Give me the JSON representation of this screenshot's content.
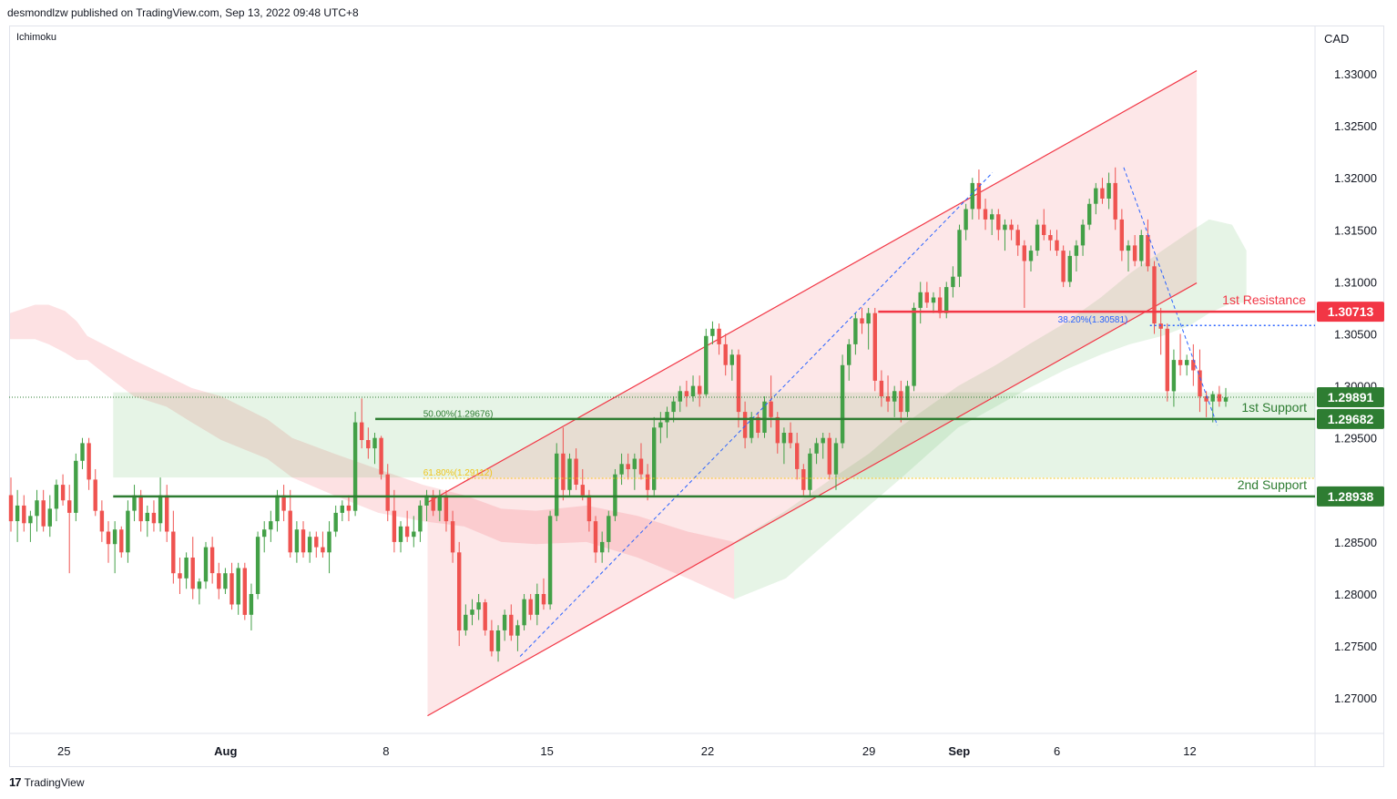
{
  "header": {
    "published": "desmondlzw published on TradingView.com, Sep 13, 2022 09:48 UTC+8"
  },
  "indicator": "Ichimoku",
  "currency": "CAD",
  "footer": {
    "logo": "17",
    "brand": "TradingView"
  },
  "colors": {
    "up": "#43a047",
    "down": "#ef5350",
    "resistance": "#f23645",
    "support": "#2e7d32",
    "channel_fill": "rgba(242,54,69,0.12)",
    "cloud_bear": "rgba(242,54,69,0.15)",
    "cloud_bull": "rgba(76,175,80,0.14)",
    "fib_blue": "#2962ff",
    "fib_yellow": "#f0c419"
  },
  "chart_data": {
    "type": "candlestick",
    "symbol_quote_currency": "CAD",
    "y_axis": {
      "ticks": [
        "1.33000",
        "1.32500",
        "1.32000",
        "1.31500",
        "1.31000",
        "1.30500",
        "1.30000",
        "1.29500",
        "1.29000",
        "1.28500",
        "1.28000",
        "1.27500",
        "1.27000"
      ],
      "range": [
        1.2665,
        1.3325
      ]
    },
    "x_axis": {
      "ticks": [
        "25",
        "Aug",
        "8",
        "15",
        "22",
        "29",
        "Sep",
        "6",
        "12"
      ],
      "bold_ticks": [
        "Aug",
        "Sep"
      ]
    },
    "levels": [
      {
        "name": "1st Resistance",
        "value": "1.30713",
        "price": 1.30713,
        "color": "resistance"
      },
      {
        "name": "1st Support",
        "value": "1.29682",
        "price": 1.29682,
        "color": "support"
      },
      {
        "name": "2nd Support",
        "value": "1.28938",
        "price": 1.28938,
        "color": "support"
      }
    ],
    "current_price": {
      "value": "1.29891",
      "price": 1.29891
    },
    "fibonacci": [
      {
        "text": "38.20%(1.30581)",
        "price": 1.30581
      },
      {
        "text": "50.00%(1.29676)",
        "price": 1.29676
      },
      {
        "text": "61.80%(1.29112)",
        "price": 1.29112
      }
    ],
    "support_zone": [
      1.29938,
      1.2912
    ],
    "channel": {
      "upper": [
        [
          0.3204,
          1.2888
        ],
        [
          0.9094,
          1.3303
        ]
      ],
      "lower": [
        [
          0.3204,
          1.2683
        ],
        [
          0.9094,
          1.3099
        ]
      ]
    },
    "swing_lines": [
      {
        "points": [
          [
            0.3913,
            1.274
          ],
          [
            0.753,
            1.3205
          ]
        ]
      },
      {
        "points": [
          [
            0.8535,
            1.321
          ],
          [
            0.9252,
            1.2962
          ]
        ]
      }
    ],
    "candles": [
      [
        1.2895,
        1.2912,
        1.286,
        1.287
      ],
      [
        1.287,
        1.29,
        1.285,
        1.2885
      ],
      [
        1.2885,
        1.2895,
        1.286,
        1.2868
      ],
      [
        1.2868,
        1.288,
        1.285,
        1.2875
      ],
      [
        1.2875,
        1.29,
        1.286,
        1.289
      ],
      [
        1.289,
        1.29,
        1.286,
        1.2865
      ],
      [
        1.2865,
        1.2895,
        1.2855,
        1.2882
      ],
      [
        1.2882,
        1.291,
        1.287,
        1.2905
      ],
      [
        1.2905,
        1.2915,
        1.2885,
        1.289
      ],
      [
        1.289,
        1.2905,
        1.282,
        1.2878
      ],
      [
        1.2878,
        1.2935,
        1.287,
        1.2928
      ],
      [
        1.2928,
        1.295,
        1.292,
        1.2945
      ],
      [
        1.2945,
        1.295,
        1.29,
        1.291
      ],
      [
        1.291,
        1.292,
        1.2875,
        1.288
      ],
      [
        1.288,
        1.289,
        1.285,
        1.286
      ],
      [
        1.286,
        1.287,
        1.283,
        1.2848
      ],
      [
        1.2848,
        1.287,
        1.282,
        1.2862
      ],
      [
        1.2862,
        1.2865,
        1.2835,
        1.284
      ],
      [
        1.284,
        1.289,
        1.283,
        1.288
      ],
      [
        1.288,
        1.2905,
        1.287,
        1.2895
      ],
      [
        1.2895,
        1.29,
        1.286,
        1.287
      ],
      [
        1.287,
        1.2885,
        1.2855,
        1.2878
      ],
      [
        1.2878,
        1.289,
        1.286,
        1.2868
      ],
      [
        1.2868,
        1.2912,
        1.286,
        1.2895
      ],
      [
        1.2895,
        1.2905,
        1.285,
        1.286
      ],
      [
        1.286,
        1.288,
        1.281,
        1.282
      ],
      [
        1.282,
        1.2835,
        1.28,
        1.2815
      ],
      [
        1.2815,
        1.284,
        1.2805,
        1.2835
      ],
      [
        1.2835,
        1.2855,
        1.2795,
        1.2805
      ],
      [
        1.2805,
        1.2815,
        1.279,
        1.2812
      ],
      [
        1.2812,
        1.285,
        1.2805,
        1.2845
      ],
      [
        1.2845,
        1.2855,
        1.281,
        1.282
      ],
      [
        1.282,
        1.283,
        1.2795,
        1.2805
      ],
      [
        1.2805,
        1.2825,
        1.28,
        1.282
      ],
      [
        1.282,
        1.283,
        1.2785,
        1.279
      ],
      [
        1.279,
        1.283,
        1.278,
        1.2825
      ],
      [
        1.2825,
        1.283,
        1.2775,
        1.278
      ],
      [
        1.278,
        1.281,
        1.2765,
        1.28
      ],
      [
        1.28,
        1.286,
        1.2795,
        1.2855
      ],
      [
        1.2855,
        1.287,
        1.284,
        1.2862
      ],
      [
        1.2862,
        1.288,
        1.285,
        1.287
      ],
      [
        1.287,
        1.29,
        1.286,
        1.2895
      ],
      [
        1.2895,
        1.2905,
        1.287,
        1.288
      ],
      [
        1.288,
        1.29,
        1.2835,
        1.284
      ],
      [
        1.284,
        1.287,
        1.283,
        1.2862
      ],
      [
        1.2862,
        1.287,
        1.2835,
        1.284
      ],
      [
        1.284,
        1.286,
        1.283,
        1.2855
      ],
      [
        1.2855,
        1.286,
        1.2835,
        1.2845
      ],
      [
        1.2845,
        1.286,
        1.2835,
        1.284
      ],
      [
        1.284,
        1.287,
        1.282,
        1.286
      ],
      [
        1.286,
        1.2885,
        1.2855,
        1.2878
      ],
      [
        1.2878,
        1.289,
        1.287,
        1.2885
      ],
      [
        1.2885,
        1.2895,
        1.287,
        1.288
      ],
      [
        1.288,
        1.2975,
        1.2875,
        1.2965
      ],
      [
        1.2965,
        1.2988,
        1.294,
        1.2948
      ],
      [
        1.2948,
        1.296,
        1.293,
        1.294
      ],
      [
        1.294,
        1.2955,
        1.2925,
        1.295
      ],
      [
        1.295,
        1.2952,
        1.291,
        1.2915
      ],
      [
        1.2915,
        1.2925,
        1.287,
        1.288
      ],
      [
        1.288,
        1.29,
        1.284,
        1.285
      ],
      [
        1.285,
        1.287,
        1.284,
        1.2865
      ],
      [
        1.2865,
        1.288,
        1.285,
        1.2855
      ],
      [
        1.2855,
        1.2875,
        1.2845,
        1.286
      ],
      [
        1.286,
        1.289,
        1.285,
        1.2885
      ],
      [
        1.2885,
        1.29,
        1.287,
        1.2895
      ],
      [
        1.2895,
        1.29,
        1.2875,
        1.288
      ],
      [
        1.288,
        1.29,
        1.287,
        1.2895
      ],
      [
        1.2895,
        1.29,
        1.286,
        1.287
      ],
      [
        1.287,
        1.288,
        1.283,
        1.284
      ],
      [
        1.284,
        1.285,
        1.275,
        1.2765
      ],
      [
        1.2765,
        1.279,
        1.276,
        1.278
      ],
      [
        1.278,
        1.2795,
        1.277,
        1.2785
      ],
      [
        1.2785,
        1.28,
        1.2775,
        1.2792
      ],
      [
        1.2792,
        1.2795,
        1.276,
        1.2765
      ],
      [
        1.2765,
        1.2775,
        1.274,
        1.2745
      ],
      [
        1.2745,
        1.277,
        1.2735,
        1.2765
      ],
      [
        1.2765,
        1.2785,
        1.2755,
        1.278
      ],
      [
        1.278,
        1.279,
        1.2755,
        1.276
      ],
      [
        1.276,
        1.2775,
        1.2745,
        1.277
      ],
      [
        1.277,
        1.28,
        1.2765,
        1.2795
      ],
      [
        1.2795,
        1.28,
        1.2775,
        1.278
      ],
      [
        1.278,
        1.281,
        1.277,
        1.28
      ],
      [
        1.28,
        1.2815,
        1.2785,
        1.279
      ],
      [
        1.279,
        1.288,
        1.2785,
        1.2875
      ],
      [
        1.2875,
        1.2945,
        1.287,
        1.2935
      ],
      [
        1.2935,
        1.296,
        1.289,
        1.29
      ],
      [
        1.29,
        1.2935,
        1.2895,
        1.293
      ],
      [
        1.293,
        1.294,
        1.29,
        1.2905
      ],
      [
        1.2905,
        1.292,
        1.289,
        1.2895
      ],
      [
        1.2895,
        1.29,
        1.286,
        1.287
      ],
      [
        1.287,
        1.2875,
        1.283,
        1.284
      ],
      [
        1.284,
        1.286,
        1.283,
        1.285
      ],
      [
        1.285,
        1.288,
        1.284,
        1.2875
      ],
      [
        1.2875,
        1.292,
        1.287,
        1.2915
      ],
      [
        1.2915,
        1.2935,
        1.2905,
        1.2925
      ],
      [
        1.2925,
        1.2935,
        1.291,
        1.292
      ],
      [
        1.292,
        1.2935,
        1.29,
        1.293
      ],
      [
        1.293,
        1.2945,
        1.291,
        1.2915
      ],
      [
        1.2915,
        1.2925,
        1.289,
        1.29
      ],
      [
        1.29,
        1.297,
        1.2895,
        1.296
      ],
      [
        1.296,
        1.2975,
        1.2945,
        1.2965
      ],
      [
        1.2965,
        1.298,
        1.295,
        1.2975
      ],
      [
        1.2975,
        1.299,
        1.2965,
        1.2985
      ],
      [
        1.2985,
        1.3,
        1.2975,
        1.2995
      ],
      [
        1.2995,
        1.3005,
        1.298,
        1.299
      ],
      [
        1.299,
        1.301,
        1.2985,
        1.3
      ],
      [
        1.3,
        1.301,
        1.298,
        1.2992
      ],
      [
        1.2992,
        1.3055,
        1.299,
        1.3048
      ],
      [
        1.3048,
        1.3062,
        1.304,
        1.3055
      ],
      [
        1.3055,
        1.306,
        1.303,
        1.304
      ],
      [
        1.304,
        1.305,
        1.301,
        1.302
      ],
      [
        1.302,
        1.3035,
        1.3005,
        1.303
      ],
      [
        1.303,
        1.3035,
        1.296,
        1.2975
      ],
      [
        1.2975,
        1.2985,
        1.294,
        1.295
      ],
      [
        1.295,
        1.2975,
        1.2945,
        1.297
      ],
      [
        1.297,
        1.2975,
        1.295,
        1.2955
      ],
      [
        1.2955,
        1.299,
        1.295,
        1.2985
      ],
      [
        1.2985,
        1.301,
        1.296,
        1.297
      ],
      [
        1.297,
        1.2975,
        1.2935,
        1.2945
      ],
      [
        1.2945,
        1.296,
        1.2925,
        1.2955
      ],
      [
        1.2955,
        1.2965,
        1.294,
        1.2945
      ],
      [
        1.2945,
        1.2955,
        1.291,
        1.292
      ],
      [
        1.292,
        1.2925,
        1.2895,
        1.29
      ],
      [
        1.29,
        1.294,
        1.2895,
        1.2935
      ],
      [
        1.2935,
        1.295,
        1.2925,
        1.2945
      ],
      [
        1.2945,
        1.2955,
        1.293,
        1.295
      ],
      [
        1.295,
        1.2955,
        1.291,
        1.2915
      ],
      [
        1.2915,
        1.295,
        1.29,
        1.2945
      ],
      [
        1.2945,
        1.303,
        1.294,
        1.302
      ],
      [
        1.302,
        1.3045,
        1.3005,
        1.304
      ],
      [
        1.304,
        1.307,
        1.303,
        1.3065
      ],
      [
        1.3065,
        1.3075,
        1.305,
        1.306
      ],
      [
        1.306,
        1.3075,
        1.3035,
        1.307
      ],
      [
        1.307,
        1.3075,
        1.2995,
        1.3005
      ],
      [
        1.3005,
        1.3015,
        1.298,
        1.299
      ],
      [
        1.299,
        1.301,
        1.2975,
        1.2985
      ],
      [
        1.2985,
        1.3,
        1.297,
        1.2995
      ],
      [
        1.2995,
        1.3005,
        1.2965,
        1.2975
      ],
      [
        1.2975,
        1.3005,
        1.297,
        1.3
      ],
      [
        1.3,
        1.308,
        1.2995,
        1.3075
      ],
      [
        1.3075,
        1.31,
        1.306,
        1.309
      ],
      [
        1.309,
        1.31,
        1.3075,
        1.308
      ],
      [
        1.308,
        1.309,
        1.307,
        1.3085
      ],
      [
        1.3085,
        1.3095,
        1.3065,
        1.307
      ],
      [
        1.307,
        1.31,
        1.3065,
        1.3095
      ],
      [
        1.3095,
        1.3115,
        1.3085,
        1.3105
      ],
      [
        1.3105,
        1.3155,
        1.3095,
        1.315
      ],
      [
        1.315,
        1.3175,
        1.314,
        1.317
      ],
      [
        1.317,
        1.32,
        1.316,
        1.3195
      ],
      [
        1.3195,
        1.3208,
        1.316,
        1.317
      ],
      [
        1.317,
        1.318,
        1.315,
        1.316
      ],
      [
        1.316,
        1.317,
        1.3145,
        1.3165
      ],
      [
        1.3165,
        1.317,
        1.314,
        1.315
      ],
      [
        1.315,
        1.316,
        1.313,
        1.3155
      ],
      [
        1.3155,
        1.316,
        1.314,
        1.315
      ],
      [
        1.315,
        1.3155,
        1.3125,
        1.3135
      ],
      [
        1.3135,
        1.314,
        1.3075,
        1.312
      ],
      [
        1.312,
        1.3135,
        1.311,
        1.313
      ],
      [
        1.313,
        1.316,
        1.3125,
        1.3155
      ],
      [
        1.3155,
        1.317,
        1.314,
        1.3145
      ],
      [
        1.3145,
        1.315,
        1.313,
        1.314
      ],
      [
        1.314,
        1.315,
        1.3125,
        1.313
      ],
      [
        1.313,
        1.3135,
        1.3095,
        1.31
      ],
      [
        1.31,
        1.313,
        1.3095,
        1.3125
      ],
      [
        1.3125,
        1.314,
        1.311,
        1.3135
      ],
      [
        1.3135,
        1.316,
        1.3125,
        1.3155
      ],
      [
        1.3155,
        1.318,
        1.315,
        1.3175
      ],
      [
        1.3175,
        1.3195,
        1.3165,
        1.319
      ],
      [
        1.319,
        1.32,
        1.3175,
        1.318
      ],
      [
        1.318,
        1.3205,
        1.317,
        1.3195
      ],
      [
        1.3195,
        1.321,
        1.315,
        1.316
      ],
      [
        1.316,
        1.317,
        1.312,
        1.313
      ],
      [
        1.313,
        1.314,
        1.311,
        1.3135
      ],
      [
        1.3135,
        1.3145,
        1.3115,
        1.312
      ],
      [
        1.312,
        1.315,
        1.3115,
        1.3145
      ],
      [
        1.3145,
        1.316,
        1.311,
        1.3115
      ],
      [
        1.3115,
        1.312,
        1.305,
        1.306
      ],
      [
        1.306,
        1.3075,
        1.303,
        1.3055
      ],
      [
        1.3055,
        1.306,
        1.2985,
        1.2995
      ],
      [
        1.2995,
        1.3035,
        1.298,
        1.3025
      ],
      [
        1.3025,
        1.305,
        1.301,
        1.302
      ],
      [
        1.302,
        1.303,
        1.301,
        1.3025
      ],
      [
        1.3025,
        1.304,
        1.3,
        1.3015
      ],
      [
        1.3015,
        1.3035,
        1.2975,
        1.299
      ],
      [
        1.299,
        1.2995,
        1.297,
        1.2985
      ],
      [
        1.2985,
        1.2995,
        1.2965,
        1.2992
      ],
      [
        1.2992,
        1.3,
        1.298,
        1.2985
      ],
      [
        1.2985,
        1.2998,
        1.298,
        1.2989
      ]
    ],
    "cloud": [
      {
        "x": [
          0.0007,
          0.0199,
          0.0303,
          0.0428,
          0.0519,
          0.0598,
          0.0799,
          0.0955,
          0.1205,
          0.1398,
          0.1624,
          0.1976,
          0.2168,
          0.2486,
          0.2827,
          0.3169,
          0.3484,
          0.3769,
          0.4035,
          0.4422,
          0.4813,
          0.5196,
          0.5552
        ],
        "top": [
          1.307,
          1.3078,
          1.3078,
          1.3072,
          1.3062,
          1.3048,
          1.3035,
          1.3025,
          1.301,
          1.2998,
          1.299,
          1.2968,
          1.295,
          1.2935,
          1.292,
          1.2905,
          1.2895,
          1.2882,
          1.288,
          1.2885,
          1.2875,
          1.286,
          1.285
        ],
        "bottom": [
          1.3045,
          1.3045,
          1.304,
          1.3032,
          1.3025,
          1.3025,
          1.3005,
          1.299,
          1.298,
          1.2965,
          1.2948,
          1.293,
          1.2912,
          1.2895,
          1.2878,
          1.287,
          1.2865,
          1.285,
          1.2848,
          1.285,
          1.2835,
          1.2815,
          1.2795
        ],
        "kind": "bear"
      },
      {
        "x": [
          0.5552,
          0.5947,
          0.6266,
          0.6586,
          0.6818,
          0.7042,
          0.7268,
          0.7555,
          0.781,
          0.8079,
          0.836,
          0.8581,
          0.8829,
          0.9039,
          0.9189,
          0.9365,
          0.9475
        ],
        "top": [
          1.285,
          1.288,
          1.2908,
          1.2935,
          1.296,
          1.298,
          1.3,
          1.302,
          1.304,
          1.306,
          1.3085,
          1.3108,
          1.313,
          1.3148,
          1.316,
          1.3155,
          1.313
        ],
        "bottom": [
          1.2795,
          1.2815,
          1.285,
          1.2885,
          1.291,
          1.2935,
          1.296,
          1.298,
          1.2998,
          1.3015,
          1.303,
          1.304,
          1.3048,
          1.3058,
          1.307,
          1.308,
          1.308
        ],
        "kind": "bull"
      }
    ]
  }
}
